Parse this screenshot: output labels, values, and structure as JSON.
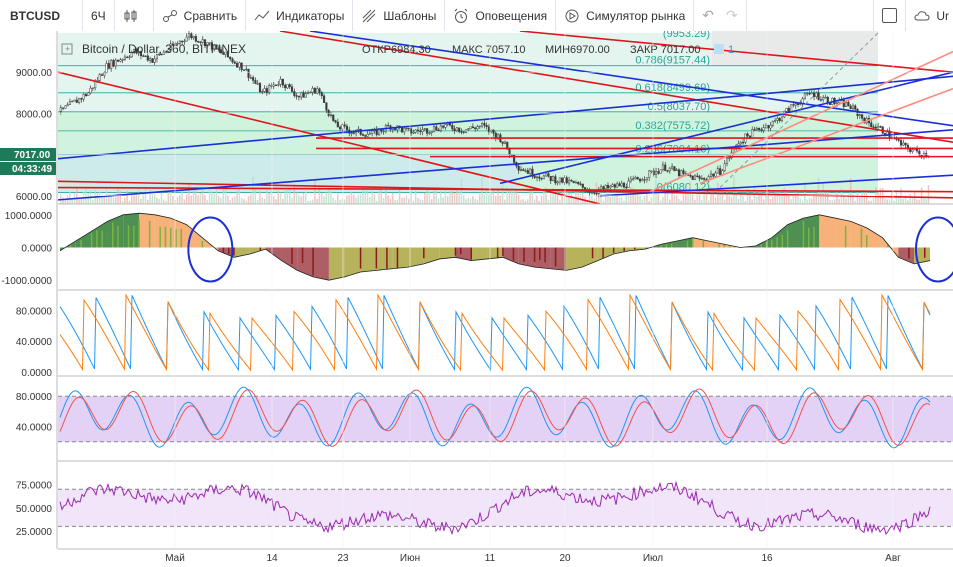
{
  "toolbar": {
    "symbol": "BTCUSD",
    "interval": "6Ч",
    "compare": "Сравнить",
    "indicators": "Индикаторы",
    "templates": "Шаблоны",
    "alerts": "Оповещения",
    "simulator": "Симулятор рынка",
    "more": "Ur"
  },
  "legend": {
    "title": "Bitcoin / Dollar, 360, BITFINEX",
    "open": "ОТКР6984.30",
    "high": "МАКС 7057.10",
    "low": "МИН6970.00",
    "close": "ЗАКР 7017.00",
    "counter": "1"
  },
  "price_tags": {
    "last": "7017.00",
    "countdown": "04:33:49"
  },
  "fib_labels": [
    {
      "text": "(9953.29)"
    },
    {
      "text": "0.786(9157.44)",
      "price": 9157.44
    },
    {
      "text": "0.618(8499.69)",
      "price": 8499.69
    },
    {
      "text": "0.5(8037.70)",
      "price": 8037.7
    },
    {
      "text": "0.382(7575.72)",
      "price": 7575.72
    },
    {
      "text": "0.236(7004.16)",
      "price": 7004.16
    },
    {
      "text": "0(6080.12)",
      "price": 6080.12
    }
  ],
  "x_labels": [
    "Май",
    "14",
    "23",
    "Июн",
    "11",
    "20",
    "Июл",
    "16",
    "Авг"
  ],
  "chart_data": [
    {
      "type": "candlestick",
      "title": "Bitcoin / Dollar, 360, BITFINEX",
      "ylim": [
        5800,
        10000
      ],
      "yticks": [
        "9000.00",
        "8000.00",
        "7000.00",
        "6000.00"
      ],
      "ytick_values": [
        9000,
        8000,
        7000,
        6000
      ],
      "close_path": [
        [
          0,
          8050
        ],
        [
          3,
          8500
        ],
        [
          5,
          9150
        ],
        [
          8,
          9500
        ],
        [
          10,
          9300
        ],
        [
          12,
          9600
        ],
        [
          14,
          9900
        ],
        [
          16,
          9700
        ],
        [
          18,
          9400
        ],
        [
          20,
          9100
        ],
        [
          22,
          8500
        ],
        [
          24,
          8800
        ],
        [
          26,
          8400
        ],
        [
          28,
          8600
        ],
        [
          30,
          7700
        ],
        [
          32,
          7550
        ],
        [
          34,
          7500
        ],
        [
          36,
          7700
        ],
        [
          38,
          7550
        ],
        [
          40,
          7600
        ],
        [
          42,
          7700
        ],
        [
          44,
          7600
        ],
        [
          46,
          7700
        ],
        [
          48,
          7400
        ],
        [
          50,
          6700
        ],
        [
          52,
          6500
        ],
        [
          54,
          6400
        ],
        [
          56,
          6300
        ],
        [
          58,
          6100
        ],
        [
          60,
          6200
        ],
        [
          62,
          6300
        ],
        [
          64,
          6500
        ],
        [
          66,
          6700
        ],
        [
          68,
          6500
        ],
        [
          70,
          6400
        ],
        [
          72,
          6600
        ],
        [
          74,
          7300
        ],
        [
          76,
          7600
        ],
        [
          78,
          7800
        ],
        [
          80,
          8200
        ],
        [
          82,
          8500
        ],
        [
          84,
          8300
        ],
        [
          86,
          8200
        ],
        [
          88,
          7800
        ],
        [
          90,
          7550
        ],
        [
          92,
          7200
        ],
        [
          94,
          7017
        ]
      ],
      "total_bars": 95
    },
    {
      "type": "area",
      "name": "momentum",
      "yticks": [
        "1000.0000",
        "0.0000",
        "-1000.0000"
      ],
      "ytick_values": [
        1000,
        0,
        -1000
      ],
      "ylim": [
        -1300,
        1300
      ],
      "values": [
        -100,
        200,
        500,
        800,
        1000,
        1050,
        1000,
        900,
        700,
        300,
        -100,
        -300,
        -200,
        -50,
        -400,
        -700,
        -900,
        -1000,
        -900,
        -750,
        -700,
        -650,
        -600,
        -500,
        -350,
        -300,
        -400,
        -350,
        -300,
        -500,
        -600,
        -650,
        -700,
        -600,
        -400,
        -200,
        -100,
        -50,
        100,
        200,
        300,
        200,
        100,
        0,
        50,
        300,
        700,
        900,
        1000,
        900,
        800,
        600,
        300,
        -300,
        -500,
        -400
      ],
      "circle_marks": [
        9,
        55
      ]
    },
    {
      "type": "line",
      "name": "aroon",
      "yticks": [
        "80.0000",
        "40.0000",
        "0.0000"
      ],
      "ytick_values": [
        80,
        40,
        0
      ],
      "ylim": [
        0,
        100
      ]
    },
    {
      "type": "line",
      "name": "stochastic",
      "yticks": [
        "80.0000",
        "40.0000"
      ],
      "ytick_values": [
        80,
        40
      ],
      "ylim": [
        0,
        100
      ],
      "band": [
        20,
        80
      ]
    },
    {
      "type": "line",
      "name": "rsi",
      "yticks": [
        "75.0000",
        "50.0000",
        "25.0000"
      ],
      "ytick_values": [
        75,
        50,
        25
      ],
      "ylim": [
        10,
        95
      ],
      "band": [
        30,
        70
      ]
    }
  ],
  "colors": {
    "up": "#26a69a",
    "down": "#ef5350",
    "candle": "#3b3b3b",
    "red_line": "#e0141b",
    "blue_line": "#1a2fd6",
    "fib_green": "#c8f2d6",
    "fib_label": "#26a69a",
    "band_purple": "#d9bff2",
    "rsi_line": "#9c27b0",
    "aroon_up": "#2196f3",
    "aroon_down": "#ff7f0e",
    "stoch_k": "#2196f3",
    "stoch_d": "#ef5350"
  }
}
